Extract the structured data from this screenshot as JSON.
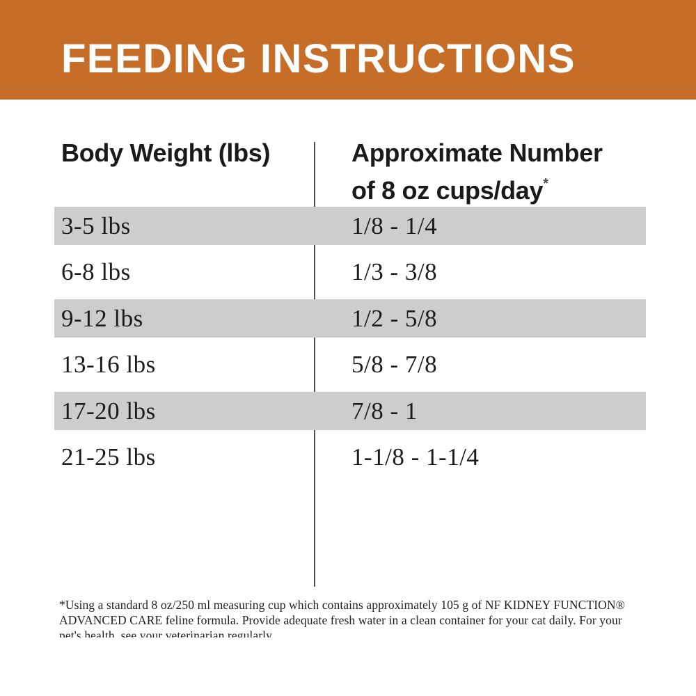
{
  "banner": {
    "title": "FEEDING INSTRUCTIONS"
  },
  "table": {
    "column_headers": {
      "weight_label": "Body Weight (lbs)",
      "cups_label_line1": "Approximate Number",
      "cups_label_line2": "of 8 oz cups/day",
      "footnote_marker": "*"
    },
    "rows": [
      {
        "weight": "3-5 lbs",
        "cups": "1/8 - 1/4"
      },
      {
        "weight": "6-8 lbs",
        "cups": "1/3 - 3/8"
      },
      {
        "weight": "9-12 lbs",
        "cups": "1/2 - 5/8"
      },
      {
        "weight": "13-16 lbs",
        "cups": "5/8 - 7/8"
      },
      {
        "weight": "17-20 lbs",
        "cups": "7/8 - 1"
      },
      {
        "weight": "21-25 lbs",
        "cups": "1-1/8 - 1-1/4"
      }
    ]
  },
  "footnote": {
    "text": "*Using a standard 8 oz/250 ml measuring cup which contains approximately 105 g of NF KIDNEY FUNCTION® ADVANCED CARE feline formula. Provide adequate fresh water in a clean container for your cat daily. For your pet's health, see your veterinarian regularly."
  },
  "colors": {
    "banner_background": "#C66E28",
    "row_stripe": "#CDCDCD",
    "text": "#1B1B1B",
    "divider": "#4D4D4D"
  },
  "chart_data": {
    "type": "table",
    "title": "FEEDING INSTRUCTIONS",
    "columns": [
      "Body Weight (lbs)",
      "Approximate Number of 8 oz cups/day*"
    ],
    "rows": [
      [
        "3-5 lbs",
        "1/8 - 1/4"
      ],
      [
        "6-8 lbs",
        "1/3 - 3/8"
      ],
      [
        "9-12 lbs",
        "1/2 - 5/8"
      ],
      [
        "13-16 lbs",
        "5/8 - 7/8"
      ],
      [
        "17-20 lbs",
        "7/8 - 1"
      ],
      [
        "21-25 lbs",
        "1-1/8 - 1-1/4"
      ]
    ],
    "footnote": "*Using a standard 8 oz/250 ml measuring cup which contains approximately 105 g of NF KIDNEY FUNCTION® ADVANCED CARE feline formula. Provide adequate fresh water in a clean container for your cat daily. For your pet's health, see your veterinarian regularly.",
    "layout": {
      "striped_rows": [
        0,
        2,
        4
      ],
      "column_divider": true
    }
  }
}
